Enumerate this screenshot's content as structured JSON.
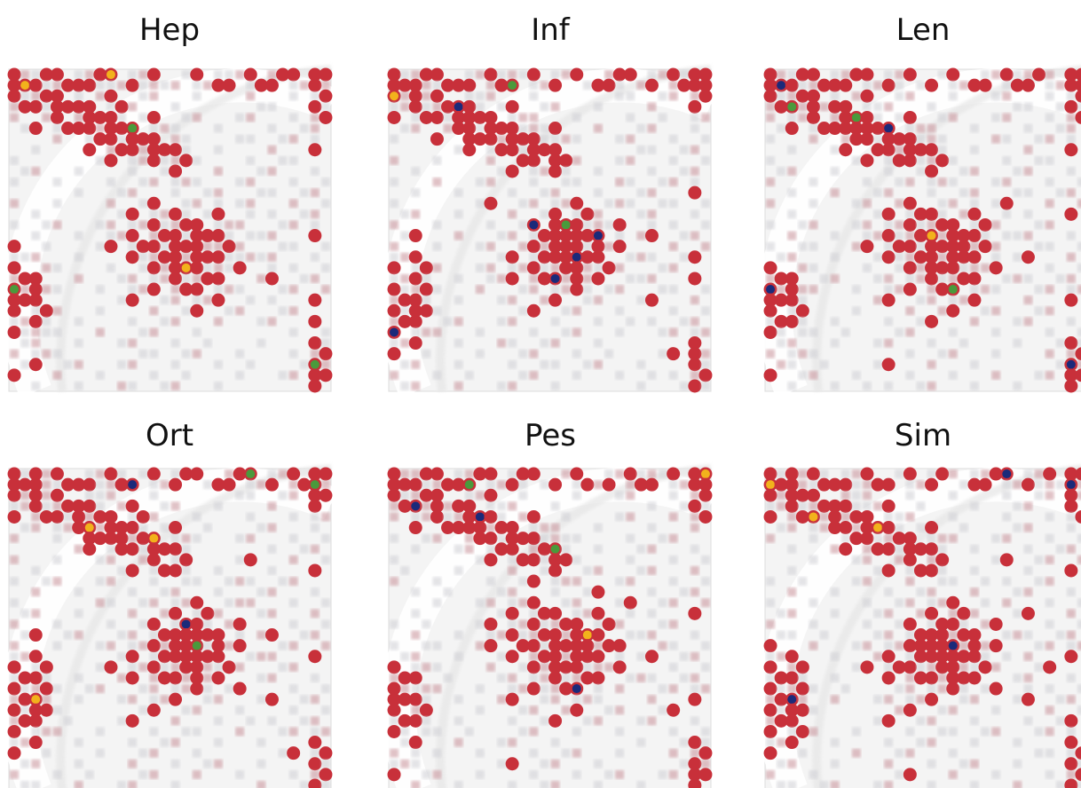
{
  "panels": [
    {
      "title": "Hep"
    },
    {
      "title": "Inf"
    },
    {
      "title": "Len"
    },
    {
      "title": "Ort"
    },
    {
      "title": "Pes"
    },
    {
      "title": "Sim"
    }
  ]
}
